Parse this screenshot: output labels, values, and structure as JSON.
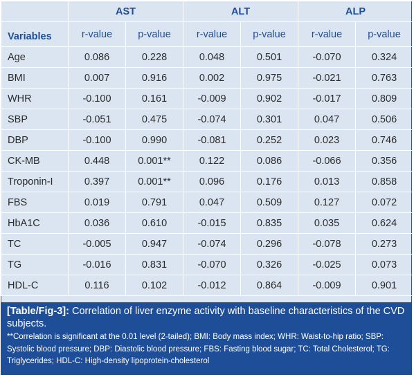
{
  "header": {
    "variables_label": "Variables",
    "groups": [
      "AST",
      "ALT",
      "ALP"
    ],
    "subcolumns": [
      "r-value",
      "p-value",
      "r-value",
      "p-value",
      "r-value",
      "p-value"
    ]
  },
  "rows": [
    {
      "variable": "Age",
      "values": [
        "0.086",
        "0.228",
        "0.048",
        "0.501",
        "-0.070",
        "0.324"
      ]
    },
    {
      "variable": "BMI",
      "values": [
        "0.007",
        "0.916",
        "0.002",
        "0.975",
        "-0.021",
        "0.763"
      ]
    },
    {
      "variable": "WHR",
      "values": [
        "-0.100",
        "0.161",
        "-0.009",
        "0.902",
        "-0.017",
        "0.809"
      ]
    },
    {
      "variable": "SBP",
      "values": [
        "-0.051",
        "0.475",
        "-0.074",
        "0.301",
        "0.047",
        "0.506"
      ]
    },
    {
      "variable": "DBP",
      "values": [
        "-0.100",
        "0.990",
        "-0.081",
        "0.252",
        "0.023",
        "0.746"
      ]
    },
    {
      "variable": "CK-MB",
      "values": [
        "0.448",
        "0.001**",
        "0.122",
        "0.086",
        "-0.066",
        "0.356"
      ]
    },
    {
      "variable": "Troponin-I",
      "values": [
        "0.397",
        "0.001**",
        "0.096",
        "0.176",
        "0.013",
        "0.858"
      ]
    },
    {
      "variable": "FBS",
      "values": [
        "0.019",
        "0.791",
        "0.047",
        "0.509",
        "0.127",
        "0.072"
      ]
    },
    {
      "variable": "HbA1C",
      "values": [
        "0.036",
        "0.610",
        "-0.015",
        "0.835",
        "0.035",
        "0.624"
      ]
    },
    {
      "variable": "TC",
      "values": [
        "-0.005",
        "0.947",
        "-0.074",
        "0.296",
        "-0.078",
        "0.273"
      ]
    },
    {
      "variable": "TG",
      "values": [
        "-0.016",
        "0.831",
        "-0.070",
        "0.326",
        "-0.025",
        "0.073"
      ]
    },
    {
      "variable": "HDL-C",
      "values": [
        "0.116",
        "0.102",
        "-0.012",
        "0.864",
        "-0.009",
        "0.901"
      ]
    }
  ],
  "caption": {
    "label": "[Table/Fig-3]:",
    "text": " Correlation of liver enzyme activity with baseline characteristics of the CVD subjects.",
    "note": "**Correlation is significant at the 0.01 level (2-tailed); BMI: Body mass index; WHR: Waist-to-hip ratio; SBP: Systolic blood pressure; DBP: Diastolic blood pressure; FBS: Fasting blood sugar; TC: Total Cholesterol; TG: Triglycerides; HDL-C: High-density lipoprotein-cholesterol"
  },
  "colors": {
    "header_text": "#1f4e98",
    "cell_background": "#dbe5f1",
    "caption_background": "#1f4e98",
    "grid_lines": "#ffffff"
  }
}
